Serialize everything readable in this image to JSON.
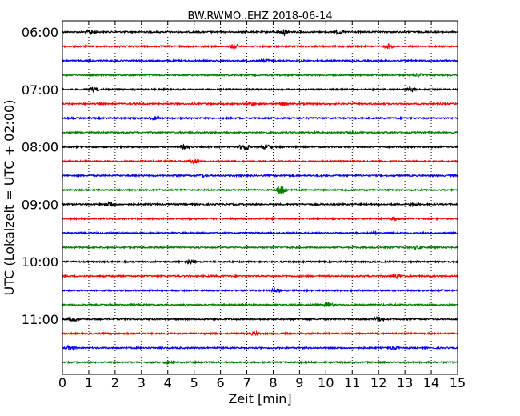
{
  "chart_data": {
    "type": "line",
    "title": "BW.RWMO..EHZ 2018-06-14",
    "xlabel": "Zeit  [min]",
    "ylabel": "UTC (Lokalzeit = UTC + 02:00)",
    "xlim": [
      0,
      15
    ],
    "x_ticks": [
      0,
      1,
      2,
      3,
      4,
      5,
      6,
      7,
      8,
      9,
      10,
      11,
      12,
      13,
      14,
      15
    ],
    "x_tick_labels": [
      "0",
      "1",
      "2",
      "3",
      "4",
      "5",
      "6",
      "7",
      "8",
      "9",
      "10",
      "11",
      "12",
      "13",
      "14",
      "15"
    ],
    "y_tick_labels": [
      "06:00",
      "07:00",
      "08:00",
      "09:00",
      "10:00",
      "11:00"
    ],
    "vertical_grid": "dotted",
    "trace_interval_min": 15,
    "line_colors": [
      "#000000",
      "#ff0000",
      "#0000ff",
      "#008000"
    ],
    "series": [
      {
        "start": "06:00",
        "color": "#000000",
        "events": [
          {
            "x": 1.1,
            "amp": 2.5
          },
          {
            "x": 8.45,
            "amp": 3.5
          },
          {
            "x": 10.5,
            "amp": 2
          }
        ]
      },
      {
        "start": "06:15",
        "color": "#ff0000",
        "events": [
          {
            "x": 6.5,
            "amp": 2.5
          },
          {
            "x": 12.4,
            "amp": 2.5
          }
        ]
      },
      {
        "start": "06:30",
        "color": "#0000ff",
        "events": [
          {
            "x": 7.7,
            "amp": 2
          }
        ]
      },
      {
        "start": "06:45",
        "color": "#008000",
        "events": [
          {
            "x": 13.5,
            "amp": 2
          }
        ]
      },
      {
        "start": "07:00",
        "color": "#000000",
        "events": [
          {
            "x": 1.2,
            "amp": 3
          },
          {
            "x": 13.2,
            "amp": 3
          }
        ]
      },
      {
        "start": "07:15",
        "color": "#ff0000",
        "events": [
          {
            "x": 7.2,
            "amp": 2
          },
          {
            "x": 8.4,
            "amp": 2
          }
        ]
      },
      {
        "start": "07:30",
        "color": "#0000ff",
        "events": [
          {
            "x": 3.5,
            "amp": 1.5
          }
        ]
      },
      {
        "start": "07:45",
        "color": "#008000",
        "events": [
          {
            "x": 11.0,
            "amp": 2
          }
        ]
      },
      {
        "start": "08:00",
        "color": "#000000",
        "events": [
          {
            "x": 4.65,
            "amp": 2.5
          },
          {
            "x": 6.9,
            "amp": 4.5
          },
          {
            "x": 7.75,
            "amp": 2.5
          }
        ]
      },
      {
        "start": "08:15",
        "color": "#ff0000",
        "events": [
          {
            "x": 5.0,
            "amp": 2
          }
        ]
      },
      {
        "start": "08:30",
        "color": "#0000ff",
        "events": [
          {
            "x": 5.3,
            "amp": 1.5
          }
        ]
      },
      {
        "start": "08:45",
        "color": "#008000",
        "events": [
          {
            "x": 8.3,
            "amp": 7
          }
        ]
      },
      {
        "start": "09:00",
        "color": "#000000",
        "events": [
          {
            "x": 1.8,
            "amp": 3.5
          },
          {
            "x": 13.3,
            "amp": 2
          }
        ]
      },
      {
        "start": "09:15",
        "color": "#ff0000",
        "events": [
          {
            "x": 12.6,
            "amp": 2
          }
        ]
      },
      {
        "start": "09:30",
        "color": "#0000ff",
        "events": [
          {
            "x": 11.8,
            "amp": 1.5
          }
        ]
      },
      {
        "start": "09:45",
        "color": "#008000",
        "events": [
          {
            "x": 13.5,
            "amp": 2
          }
        ]
      },
      {
        "start": "10:00",
        "color": "#000000",
        "events": [
          {
            "x": 4.9,
            "amp": 2
          }
        ]
      },
      {
        "start": "10:15",
        "color": "#ff0000",
        "events": [
          {
            "x": 12.7,
            "amp": 2
          }
        ]
      },
      {
        "start": "10:30",
        "color": "#0000ff",
        "events": [
          {
            "x": 8.1,
            "amp": 2
          }
        ]
      },
      {
        "start": "10:45",
        "color": "#008000",
        "events": [
          {
            "x": 10.1,
            "amp": 2.5
          }
        ]
      },
      {
        "start": "11:00",
        "color": "#000000",
        "events": [
          {
            "x": 0.4,
            "amp": 3
          },
          {
            "x": 12.0,
            "amp": 3
          }
        ]
      },
      {
        "start": "11:15",
        "color": "#ff0000",
        "events": [
          {
            "x": 7.3,
            "amp": 2
          }
        ]
      },
      {
        "start": "11:30",
        "color": "#0000ff",
        "events": [
          {
            "x": 0.3,
            "amp": 3
          },
          {
            "x": 12.6,
            "amp": 2
          }
        ]
      },
      {
        "start": "11:45",
        "color": "#008000",
        "events": [
          {
            "x": 4.0,
            "amp": 1.5
          }
        ]
      }
    ]
  }
}
